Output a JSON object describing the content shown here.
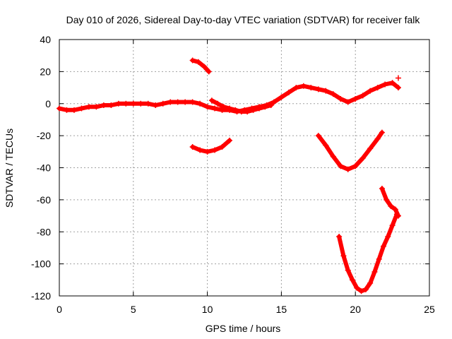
{
  "chart_data": {
    "type": "scatter",
    "title": "Day 010 of 2026, Sidereal Day-to-day VTEC variation (SDTVAR) for receiver falk",
    "xlabel": "GPS time / hours",
    "ylabel": "SDTVAR / TECUs",
    "xlim": [
      0,
      25
    ],
    "ylim": [
      -120,
      40
    ],
    "xticks": [
      0,
      5,
      10,
      15,
      20,
      25
    ],
    "yticks": [
      -120,
      -100,
      -80,
      -60,
      -40,
      -20,
      0,
      20,
      40
    ],
    "xtick_labels": [
      "0",
      "5",
      "10",
      "15",
      "20",
      "25"
    ],
    "ytick_labels": [
      "-120",
      "-100",
      "-80",
      "-60",
      "-40",
      "-20",
      "0",
      "20",
      "40"
    ],
    "grid": true,
    "marker": "+",
    "color": "#ff0000",
    "series": [
      {
        "x": [
          0.0,
          0.5,
          1.0,
          1.5,
          2.0,
          2.5,
          3.0,
          3.5,
          4.0,
          4.5,
          5.0,
          5.5,
          6.0,
          6.5,
          7.0,
          7.5,
          8.0,
          8.5,
          9.0,
          9.5,
          10.0,
          10.5,
          11.0,
          11.5,
          12.0,
          12.5,
          13.0,
          13.5,
          14.0,
          14.5,
          15.0,
          15.5,
          16.0,
          16.5,
          17.0,
          17.5,
          18.0,
          18.5,
          19.0,
          19.5,
          20.0,
          20.5,
          21.0,
          21.5,
          22.0,
          22.5,
          22.9
        ],
        "y": [
          -3,
          -4,
          -4,
          -3,
          -2,
          -2,
          -1,
          -1,
          0,
          0,
          0,
          0,
          0,
          -1,
          0,
          1,
          1,
          1,
          1,
          0,
          -2,
          -3,
          -4,
          -4,
          -5,
          -4,
          -3,
          -2,
          -1,
          1,
          4,
          7,
          10,
          11,
          10,
          9,
          8,
          6,
          3,
          1,
          3,
          5,
          8,
          10,
          12,
          13,
          10
        ]
      },
      {
        "x": [
          9.0,
          9.4,
          9.8,
          10.1
        ],
        "y": [
          27,
          26,
          23,
          20
        ]
      },
      {
        "x": [
          10.3,
          10.7,
          11.1,
          11.5,
          11.9,
          12.3,
          12.7,
          13.1,
          13.5,
          13.9,
          14.3
        ],
        "y": [
          2,
          0,
          -2,
          -3,
          -4,
          -5,
          -5,
          -4,
          -3,
          -2,
          -1
        ]
      },
      {
        "x": [
          9.0,
          9.5,
          10.0,
          10.5,
          11.0,
          11.5
        ],
        "y": [
          -27,
          -29,
          -30,
          -29,
          -27,
          -23
        ]
      },
      {
        "x": [
          17.5,
          18.0,
          18.5,
          19.0,
          19.5,
          20.0,
          20.5,
          21.0,
          21.5,
          21.8
        ],
        "y": [
          -20,
          -26,
          -33,
          -39,
          -41,
          -39,
          -34,
          -28,
          -22,
          -18
        ]
      },
      {
        "x": [
          21.8,
          22.1,
          22.4,
          22.7,
          22.9
        ],
        "y": [
          -53,
          -60,
          -64,
          -66,
          -70
        ]
      },
      {
        "x": [
          18.9,
          19.2,
          19.5,
          19.8,
          20.1,
          20.4,
          20.7,
          21.0,
          21.3,
          21.6,
          21.9,
          22.2,
          22.5,
          22.8
        ],
        "y": [
          -83,
          -95,
          -104,
          -110,
          -115,
          -117,
          -116,
          -112,
          -105,
          -97,
          -89,
          -83,
          -76,
          -69
        ]
      },
      {
        "x": [
          22.9
        ],
        "y": [
          16
        ]
      }
    ]
  }
}
